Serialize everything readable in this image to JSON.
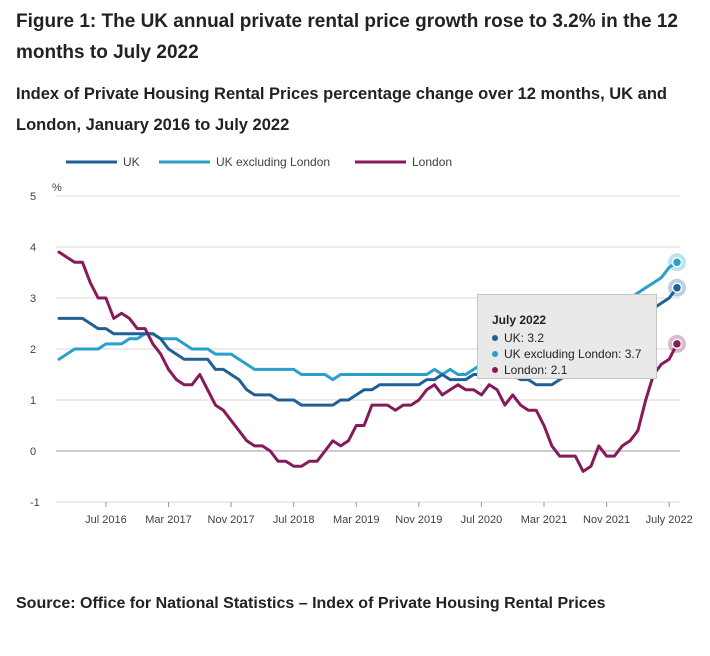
{
  "figure": {
    "title": "Figure 1: The UK annual private rental price growth rose to 3.2% in the 12 months to July 2022",
    "subtitle": "Index of Private Housing Rental Prices percentage change over 12 months, UK and London, January 2016 to July 2022",
    "source": "Source: Office for National Statistics – Index of Private Housing Rental Prices"
  },
  "colors": {
    "uk": "#206095",
    "uk_excl_london": "#27a0cc",
    "london": "#871a5b",
    "grid": "#d9d9d9",
    "axis": "#999999",
    "tooltip_bg": "#e9e9e9"
  },
  "tooltip": {
    "title": "July 2022",
    "rows": [
      {
        "series": "uk",
        "text": "UK: 3.2"
      },
      {
        "series": "uk_excl_london",
        "text": "UK excluding London: 3.7"
      },
      {
        "series": "london",
        "text": "London: 2.1"
      }
    ]
  },
  "chart_data": {
    "type": "line",
    "title": "",
    "xlabel": "",
    "ylabel": "%",
    "ylim": [
      -1,
      5
    ],
    "yticks": [
      -1,
      0,
      1,
      2,
      3,
      4,
      5
    ],
    "grid": true,
    "legend_position": "top",
    "x_start": "Jan 2016",
    "x_end": "Jul 2022",
    "x_tick_labels": [
      {
        "month_index": 6,
        "label": "Jul 2016"
      },
      {
        "month_index": 14,
        "label": "Mar 2017"
      },
      {
        "month_index": 22,
        "label": "Nov 2017"
      },
      {
        "month_index": 30,
        "label": "Jul 2018"
      },
      {
        "month_index": 38,
        "label": "Mar 2019"
      },
      {
        "month_index": 46,
        "label": "Nov 2019"
      },
      {
        "month_index": 54,
        "label": "Jul 2020"
      },
      {
        "month_index": 62,
        "label": "Mar 2021"
      },
      {
        "month_index": 70,
        "label": "Nov 2021"
      },
      {
        "month_index": 78,
        "label": "July 2022"
      }
    ],
    "series": [
      {
        "key": "uk",
        "name": "UK",
        "color": "#206095",
        "values": [
          2.6,
          2.6,
          2.6,
          2.6,
          2.5,
          2.4,
          2.4,
          2.3,
          2.3,
          2.3,
          2.3,
          2.3,
          2.3,
          2.2,
          2.0,
          1.9,
          1.8,
          1.8,
          1.8,
          1.8,
          1.6,
          1.6,
          1.5,
          1.4,
          1.2,
          1.1,
          1.1,
          1.1,
          1.0,
          1.0,
          1.0,
          0.9,
          0.9,
          0.9,
          0.9,
          0.9,
          1.0,
          1.0,
          1.1,
          1.2,
          1.2,
          1.3,
          1.3,
          1.3,
          1.3,
          1.3,
          1.3,
          1.4,
          1.4,
          1.5,
          1.4,
          1.4,
          1.4,
          1.5,
          1.5,
          1.5,
          1.5,
          1.5,
          1.5,
          1.4,
          1.4,
          1.3,
          1.3,
          1.3,
          1.4,
          1.5,
          1.6,
          1.7,
          1.8,
          1.9,
          2.0,
          2.1,
          2.2,
          2.3,
          2.5,
          2.6,
          2.8,
          2.9,
          3.0,
          3.2
        ]
      },
      {
        "key": "uk_excl_london",
        "name": "UK excluding London",
        "color": "#27a0cc",
        "values": [
          1.8,
          1.9,
          2.0,
          2.0,
          2.0,
          2.0,
          2.1,
          2.1,
          2.1,
          2.2,
          2.2,
          2.3,
          2.3,
          2.2,
          2.2,
          2.2,
          2.1,
          2.0,
          2.0,
          2.0,
          1.9,
          1.9,
          1.9,
          1.8,
          1.7,
          1.6,
          1.6,
          1.6,
          1.6,
          1.6,
          1.6,
          1.5,
          1.5,
          1.5,
          1.5,
          1.4,
          1.5,
          1.5,
          1.5,
          1.5,
          1.5,
          1.5,
          1.5,
          1.5,
          1.5,
          1.5,
          1.5,
          1.5,
          1.6,
          1.5,
          1.6,
          1.5,
          1.5,
          1.6,
          1.7,
          1.6,
          1.6,
          1.7,
          1.7,
          1.6,
          1.6,
          1.6,
          1.7,
          1.7,
          1.8,
          1.9,
          2.0,
          2.2,
          2.3,
          2.5,
          2.6,
          2.8,
          2.9,
          3.0,
          3.1,
          3.2,
          3.3,
          3.4,
          3.6,
          3.7
        ]
      },
      {
        "key": "london",
        "name": "London",
        "color": "#871a5b",
        "values": [
          3.9,
          3.8,
          3.7,
          3.7,
          3.3,
          3.0,
          3.0,
          2.6,
          2.7,
          2.6,
          2.4,
          2.4,
          2.1,
          1.9,
          1.6,
          1.4,
          1.3,
          1.3,
          1.5,
          1.2,
          0.9,
          0.8,
          0.6,
          0.4,
          0.2,
          0.1,
          0.1,
          0.0,
          -0.2,
          -0.2,
          -0.3,
          -0.3,
          -0.2,
          -0.2,
          0.0,
          0.2,
          0.1,
          0.2,
          0.5,
          0.5,
          0.9,
          0.9,
          0.9,
          0.8,
          0.9,
          0.9,
          1.0,
          1.2,
          1.3,
          1.1,
          1.2,
          1.3,
          1.2,
          1.2,
          1.1,
          1.3,
          1.2,
          0.9,
          1.1,
          0.9,
          0.8,
          0.8,
          0.5,
          0.1,
          -0.1,
          -0.1,
          -0.1,
          -0.4,
          -0.3,
          0.1,
          -0.1,
          -0.1,
          0.1,
          0.2,
          0.4,
          1.0,
          1.5,
          1.7,
          1.8,
          2.1
        ]
      }
    ]
  }
}
